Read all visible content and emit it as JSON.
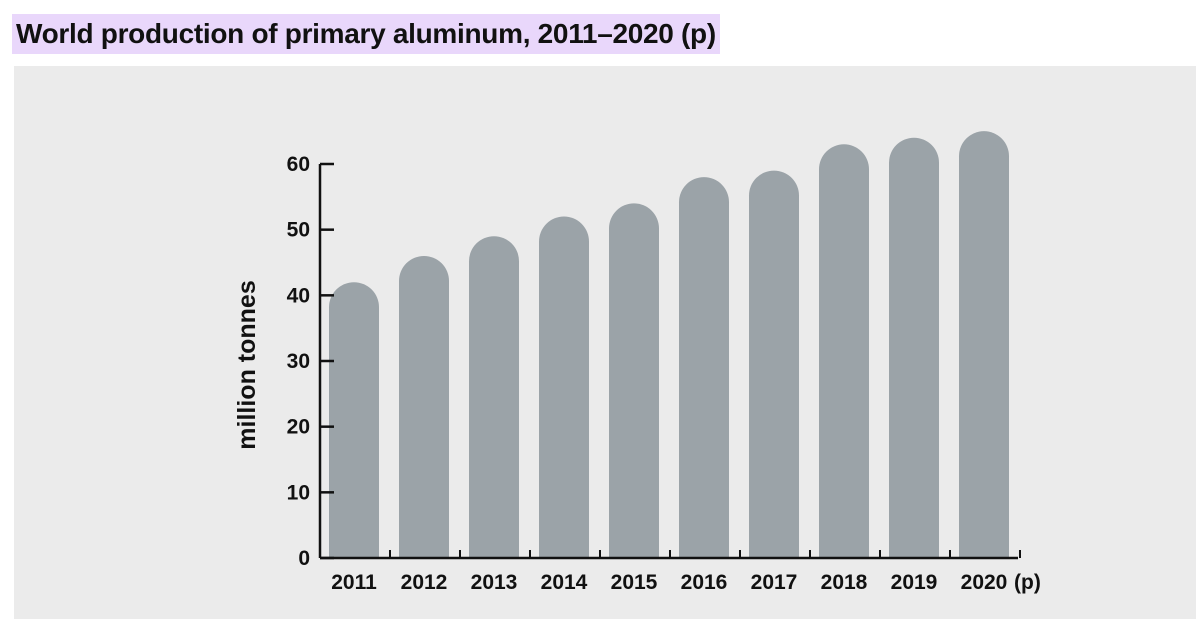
{
  "page": {
    "title": "World production of primary aluminum, 2011–2020 (p)",
    "title_highlight_color": "#e9d7fb",
    "panel_color": "#ebebeb"
  },
  "chart_data": {
    "type": "bar",
    "title": "World production of primary aluminum, 2011–2020 (p)",
    "xlabel": "",
    "ylabel": "million tonnes",
    "categories": [
      "2011",
      "2012",
      "2013",
      "2014",
      "2015",
      "2016",
      "2017",
      "2018",
      "2019",
      "2020"
    ],
    "category_suffix": "(p)",
    "values": [
      42,
      46,
      49,
      52,
      54,
      58,
      59,
      63,
      64,
      65
    ],
    "ylim": [
      0,
      60
    ],
    "yticks": [
      0,
      10,
      20,
      30,
      40,
      50,
      60
    ],
    "grid": false,
    "bar_color": "#9ba3a8",
    "bar_style": "rounded-top"
  }
}
